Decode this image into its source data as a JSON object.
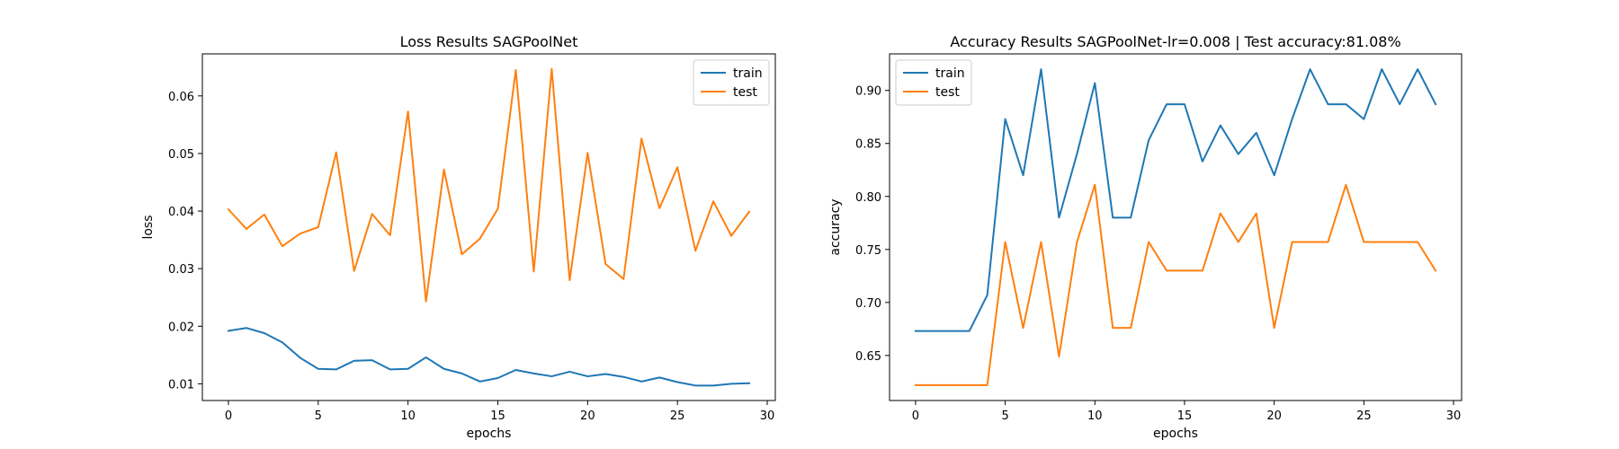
{
  "chart_data": [
    {
      "type": "line",
      "title": "Loss Results SAGPoolNet",
      "xlabel": "epochs",
      "ylabel": "loss",
      "xlim": [
        -1.45,
        30.45
      ],
      "ylim": [
        0.0071,
        0.0673
      ],
      "xticks": [
        0,
        5,
        10,
        15,
        20,
        25,
        30
      ],
      "yticks": [
        0.01,
        0.02,
        0.03,
        0.04,
        0.05,
        0.06
      ],
      "ytick_decimals": 2,
      "grid": false,
      "legend_position": "top-right",
      "x": [
        0,
        1,
        2,
        3,
        4,
        5,
        6,
        7,
        8,
        9,
        10,
        11,
        12,
        13,
        14,
        15,
        16,
        17,
        18,
        19,
        20,
        21,
        22,
        23,
        24,
        25,
        26,
        27,
        28,
        29
      ],
      "series": [
        {
          "name": "train",
          "color": "#1f77b4",
          "values": [
            0.0192,
            0.0197,
            0.0188,
            0.0172,
            0.0145,
            0.0126,
            0.0125,
            0.014,
            0.0141,
            0.0125,
            0.0126,
            0.0146,
            0.0126,
            0.0118,
            0.0104,
            0.011,
            0.0124,
            0.0118,
            0.0113,
            0.0121,
            0.0113,
            0.0117,
            0.0112,
            0.0104,
            0.0111,
            0.0103,
            0.0097,
            0.0097,
            0.01,
            0.0101
          ]
        },
        {
          "name": "test",
          "color": "#ff7f0e",
          "values": [
            0.0403,
            0.0369,
            0.0394,
            0.0339,
            0.0361,
            0.0372,
            0.0502,
            0.0296,
            0.0395,
            0.0358,
            0.0573,
            0.0243,
            0.0472,
            0.0325,
            0.0352,
            0.0404,
            0.0645,
            0.0295,
            0.0647,
            0.028,
            0.0501,
            0.0308,
            0.0282,
            0.0526,
            0.0405,
            0.0476,
            0.0331,
            0.0417,
            0.0357,
            0.0399
          ]
        }
      ]
    },
    {
      "type": "line",
      "title": "Accuracy Results SAGPoolNet-lr=0.008 | Test accuracy:81.08%",
      "xlabel": "epochs",
      "ylabel": "accuracy",
      "xlim": [
        -1.45,
        30.45
      ],
      "ylim": [
        0.6075,
        0.9345
      ],
      "xticks": [
        0,
        5,
        10,
        15,
        20,
        25,
        30
      ],
      "yticks": [
        0.65,
        0.7,
        0.75,
        0.8,
        0.85,
        0.9
      ],
      "ytick_decimals": 2,
      "grid": false,
      "legend_position": "top-left",
      "x": [
        0,
        1,
        2,
        3,
        4,
        5,
        6,
        7,
        8,
        9,
        10,
        11,
        12,
        13,
        14,
        15,
        16,
        17,
        18,
        19,
        20,
        21,
        22,
        23,
        24,
        25,
        26,
        27,
        28,
        29
      ],
      "series": [
        {
          "name": "train",
          "color": "#1f77b4",
          "values": [
            0.673,
            0.673,
            0.673,
            0.673,
            0.707,
            0.873,
            0.82,
            0.92,
            0.78,
            0.84,
            0.907,
            0.78,
            0.78,
            0.853,
            0.887,
            0.887,
            0.833,
            0.867,
            0.84,
            0.86,
            0.82,
            0.873,
            0.92,
            0.887,
            0.887,
            0.873,
            0.92,
            0.887,
            0.92,
            0.887
          ]
        },
        {
          "name": "test",
          "color": "#ff7f0e",
          "values": [
            0.622,
            0.622,
            0.622,
            0.622,
            0.622,
            0.757,
            0.676,
            0.757,
            0.649,
            0.757,
            0.811,
            0.676,
            0.676,
            0.757,
            0.73,
            0.73,
            0.73,
            0.784,
            0.757,
            0.784,
            0.676,
            0.757,
            0.757,
            0.757,
            0.811,
            0.757,
            0.757,
            0.757,
            0.757,
            0.73
          ]
        }
      ]
    }
  ]
}
